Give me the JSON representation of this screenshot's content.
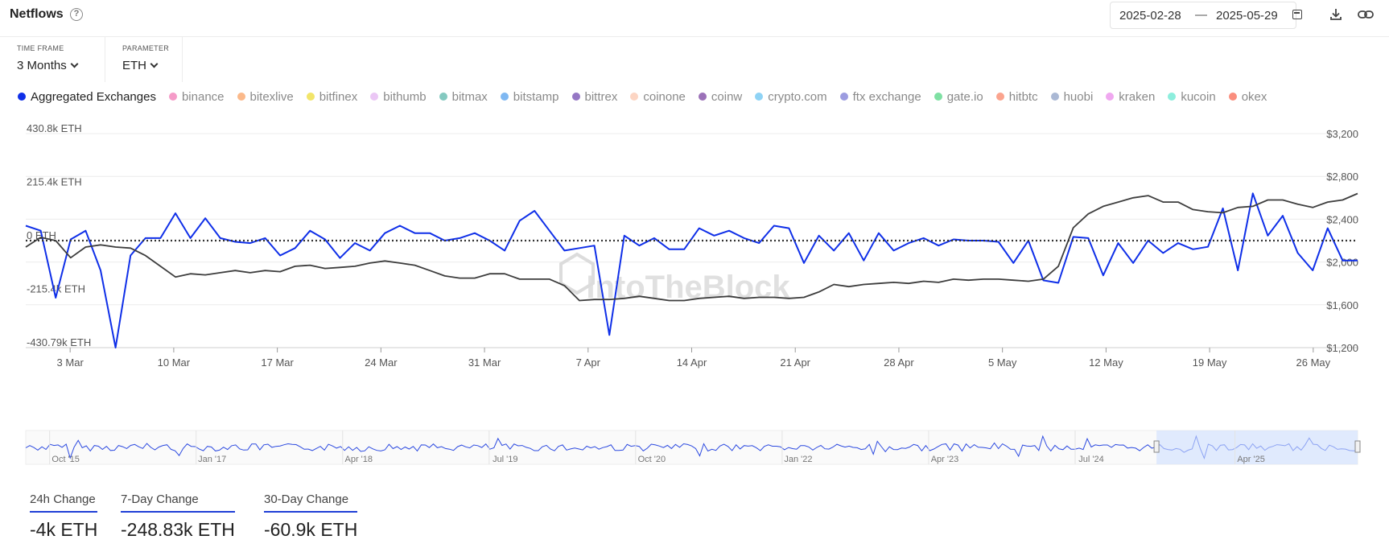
{
  "header": {
    "title": "Netflows",
    "help_icon": "question-circle-icon",
    "date_start": "2025-02-28",
    "date_sep": "—",
    "date_end": "2025-05-29",
    "calendar_icon": "calendar-icon",
    "download_icon": "download-icon",
    "link_icon": "link-icon"
  },
  "controls": {
    "timeframe": {
      "label": "TIME FRAME",
      "value": "3 Months"
    },
    "parameter": {
      "label": "PARAMETER",
      "value": "ETH"
    }
  },
  "legend": [
    {
      "name": "Aggregated Exchanges",
      "color": "#0f2fe8",
      "active": true
    },
    {
      "name": "binance",
      "color": "#f59bc8",
      "active": false
    },
    {
      "name": "bitexlive",
      "color": "#fbb98a",
      "active": false
    },
    {
      "name": "bitfinex",
      "color": "#f2e56a",
      "active": false
    },
    {
      "name": "bithumb",
      "color": "#ebc7f5",
      "active": false
    },
    {
      "name": "bitmax",
      "color": "#84c9c0",
      "active": false
    },
    {
      "name": "bitstamp",
      "color": "#7fb8f2",
      "active": false
    },
    {
      "name": "bittrex",
      "color": "#9577c4",
      "active": false
    },
    {
      "name": "coinone",
      "color": "#fcd5c3",
      "active": false
    },
    {
      "name": "coinw",
      "color": "#9b71b8",
      "active": false
    },
    {
      "name": "crypto.com",
      "color": "#8fd3f5",
      "active": false
    },
    {
      "name": "ftx exchange",
      "color": "#9c9ce0",
      "active": false
    },
    {
      "name": "gate.io",
      "color": "#7fe0a3",
      "active": false
    },
    {
      "name": "hitbtc",
      "color": "#fba48e",
      "active": false
    },
    {
      "name": "huobi",
      "color": "#aab8d4",
      "active": false
    },
    {
      "name": "kraken",
      "color": "#f0a8f0",
      "active": false
    },
    {
      "name": "kucoin",
      "color": "#8deedd",
      "active": false
    },
    {
      "name": "okex",
      "color": "#fa8e7e",
      "active": false
    }
  ],
  "chart_data": {
    "type": "line",
    "left_ticks": [
      "430.8k ETH",
      "215.4k ETH",
      "0 ETH",
      "-215.4k ETH",
      "-430.79k ETH"
    ],
    "left_tick_values": [
      430800,
      215400,
      0,
      -215400,
      -430790
    ],
    "right_ticks": [
      "$3,200",
      "$2,800",
      "$2,400",
      "$2,000",
      "$1,600",
      "$1,200"
    ],
    "right_tick_values": [
      3200,
      2800,
      2400,
      2000,
      1600,
      1200
    ],
    "y_left_range": [
      -430790,
      430800
    ],
    "y_right_range": [
      1200,
      3200
    ],
    "x_ticks": [
      "3 Mar",
      "10 Mar",
      "17 Mar",
      "24 Mar",
      "31 Mar",
      "7 Apr",
      "14 Apr",
      "21 Apr",
      "28 Apr",
      "5 May",
      "12 May",
      "19 May",
      "26 May"
    ],
    "x_tick_days": [
      3,
      10,
      17,
      24,
      31,
      38,
      45,
      52,
      59,
      66,
      73,
      80,
      87
    ],
    "x_range_days": [
      0,
      90
    ],
    "zero_line": "dotted",
    "watermark": "IntoTheBlock",
    "series": [
      {
        "name": "Aggregated Exchanges",
        "axis": "left",
        "color": "#0f2fe8",
        "values": [
          60000,
          40000,
          -230000,
          5000,
          40000,
          -120000,
          -430790,
          -60000,
          10000,
          10000,
          110000,
          10000,
          90000,
          10000,
          -5000,
          -10000,
          10000,
          -60000,
          -30000,
          40000,
          5000,
          -70000,
          -10000,
          -40000,
          30000,
          60000,
          30000,
          30000,
          0,
          10000,
          30000,
          0,
          -40000,
          80000,
          120000,
          40000,
          -40000,
          -30000,
          -20000,
          -380000,
          20000,
          -20000,
          10000,
          -35000,
          -35000,
          50000,
          20000,
          40000,
          10000,
          -10000,
          60000,
          50000,
          -90000,
          20000,
          -40000,
          30000,
          -80000,
          30000,
          -40000,
          -10000,
          10000,
          -20000,
          5000,
          0,
          0,
          -5000,
          -90000,
          0,
          -160000,
          -170000,
          15000,
          10000,
          -140000,
          -10000,
          -90000,
          0,
          -50000,
          -10000,
          -35000,
          -25000,
          130000,
          -120000,
          190000,
          20000,
          100000,
          -50000,
          -120000,
          50000,
          -80000,
          -80000
        ]
      },
      {
        "name": "ETH price",
        "axis": "right",
        "color": "#3d3d3d",
        "values": [
          2140,
          2230,
          2200,
          2040,
          2140,
          2160,
          2140,
          2130,
          2060,
          1960,
          1860,
          1890,
          1880,
          1900,
          1920,
          1900,
          1920,
          1910,
          1960,
          1970,
          1940,
          1950,
          1960,
          1990,
          2010,
          1990,
          1970,
          1920,
          1870,
          1850,
          1850,
          1890,
          1890,
          1840,
          1840,
          1840,
          1780,
          1640,
          1650,
          1650,
          1660,
          1680,
          1660,
          1640,
          1640,
          1660,
          1670,
          1680,
          1660,
          1670,
          1670,
          1660,
          1670,
          1720,
          1790,
          1770,
          1790,
          1800,
          1810,
          1800,
          1820,
          1810,
          1840,
          1830,
          1840,
          1840,
          1830,
          1820,
          1840,
          1960,
          2320,
          2450,
          2520,
          2560,
          2600,
          2620,
          2560,
          2560,
          2490,
          2470,
          2460,
          2510,
          2520,
          2580,
          2580,
          2540,
          2510,
          2560,
          2580,
          2640
        ]
      }
    ]
  },
  "navigator": {
    "labels": [
      "Oct '15",
      "Jan '17",
      "Apr '18",
      "Jul '19",
      "Oct '20",
      "Jan '22",
      "Apr '23",
      "Jul '24",
      "Apr '25"
    ],
    "label_fractions": [
      0.03,
      0.14,
      0.25,
      0.36,
      0.47,
      0.58,
      0.69,
      0.8,
      0.92
    ],
    "selected_range_fraction": [
      0.849,
      1.0
    ]
  },
  "changes": [
    {
      "label": "24h Change",
      "value": "-4k ETH"
    },
    {
      "label": "7-Day Change",
      "value": "-248.83k ETH"
    },
    {
      "label": "30-Day Change",
      "value": "-60.9k ETH"
    }
  ]
}
